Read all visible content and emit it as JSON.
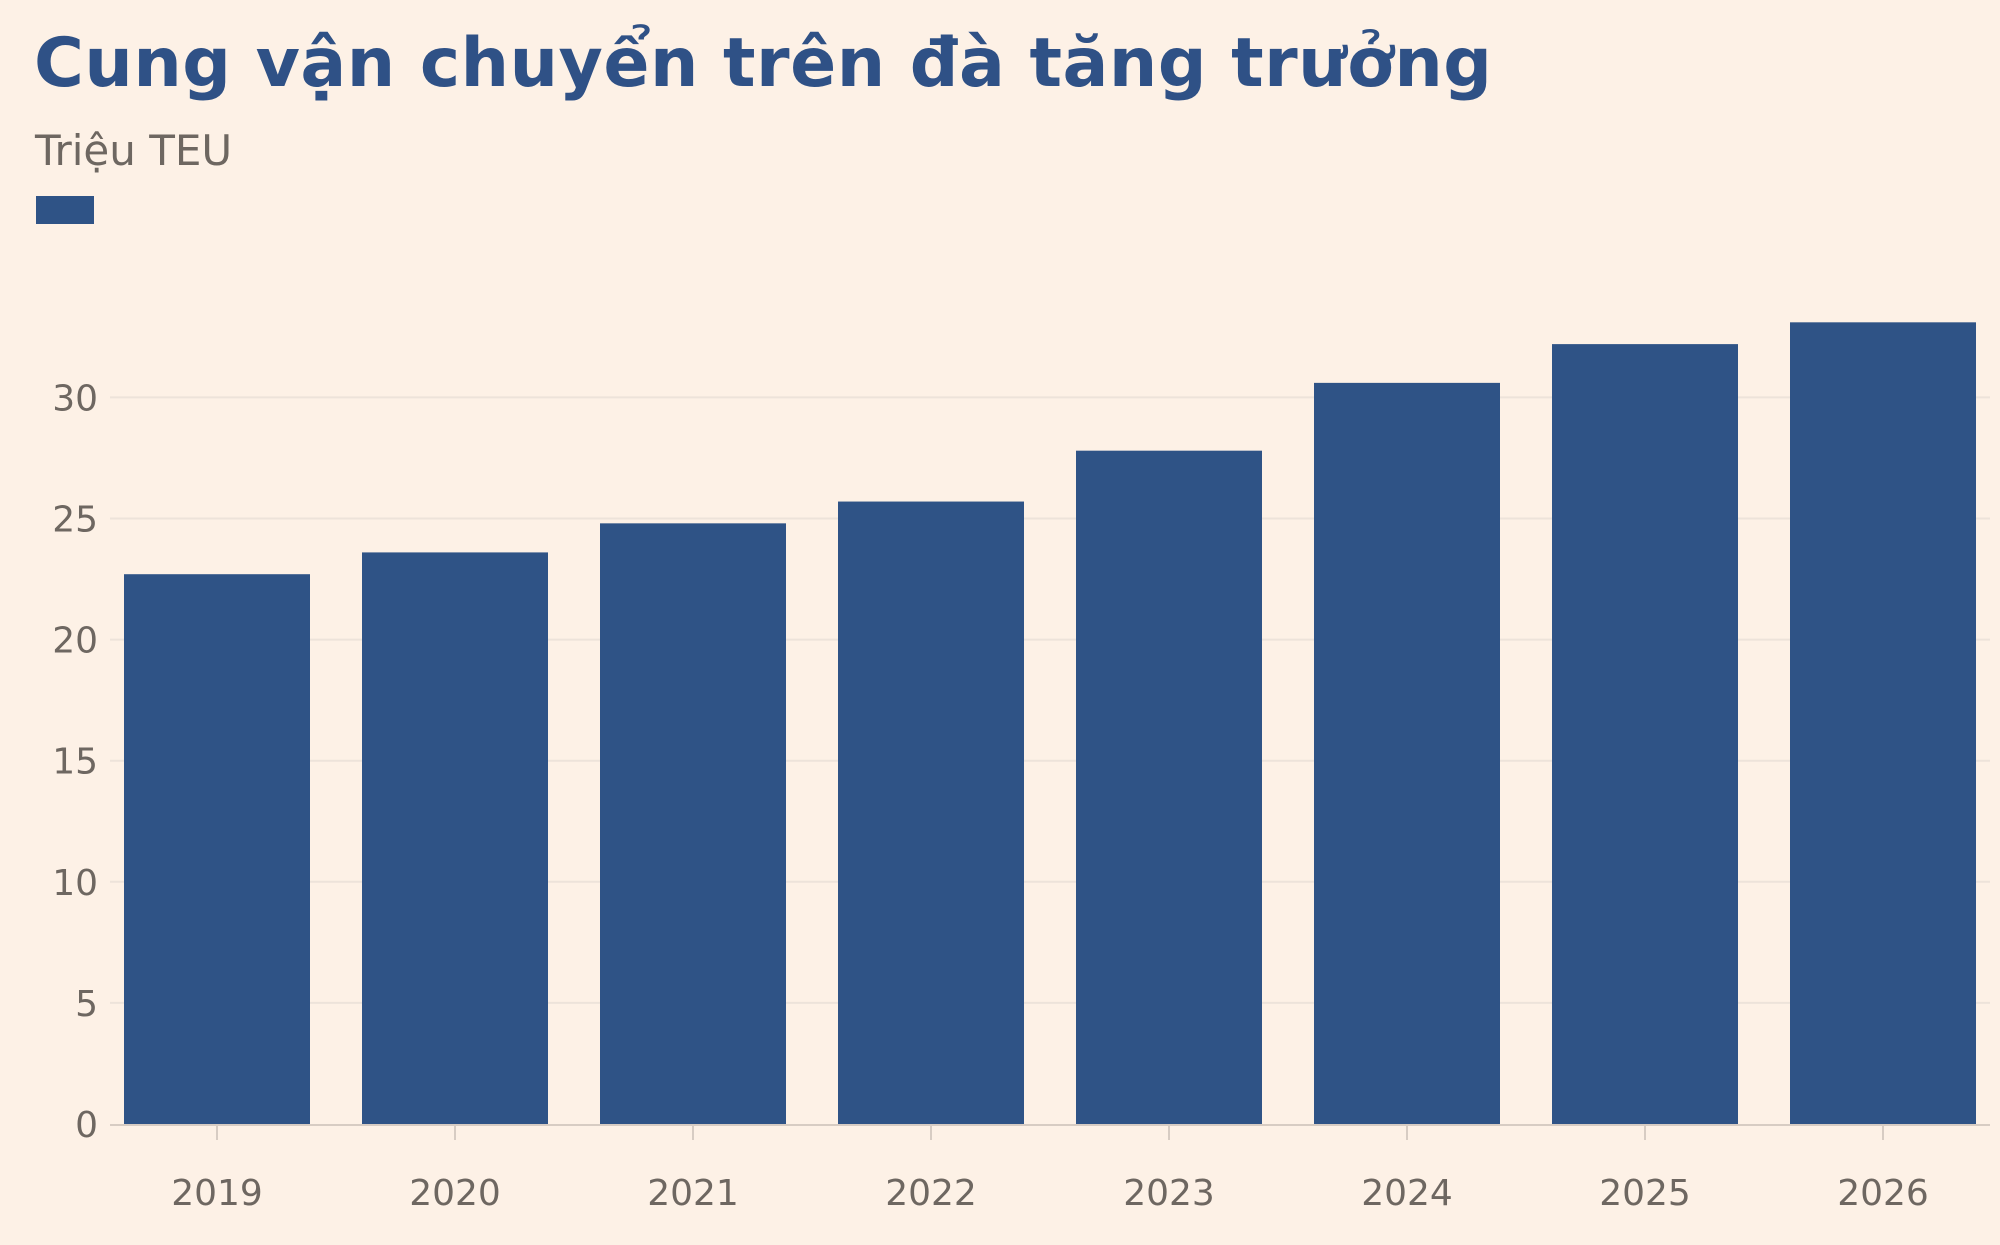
{
  "title": "Cung vận chuyển trên đà tăng trưởng",
  "subtitle": "Triệu TEU",
  "colors": {
    "bar": "#2f5386",
    "background": "#fdf1e6",
    "grid": "#ede3da",
    "axis": "#d7ccc3",
    "tick_text": "#6e6761"
  },
  "chart_data": {
    "type": "bar",
    "title": "Cung vận chuyển trên đà tăng trưởng",
    "subtitle": "Triệu TEU",
    "categories": [
      "2019",
      "2020",
      "2021",
      "2022",
      "2023",
      "2024",
      "2025",
      "2026"
    ],
    "series": [
      {
        "values": [
          22.7,
          23.6,
          24.8,
          25.7,
          27.8,
          30.6,
          32.2,
          33.1
        ]
      }
    ],
    "y_ticks": [
      "0",
      "5",
      "10",
      "15",
      "20",
      "25",
      "30"
    ],
    "ylim": [
      0,
      35
    ],
    "grid": true,
    "legend": "top-left"
  }
}
